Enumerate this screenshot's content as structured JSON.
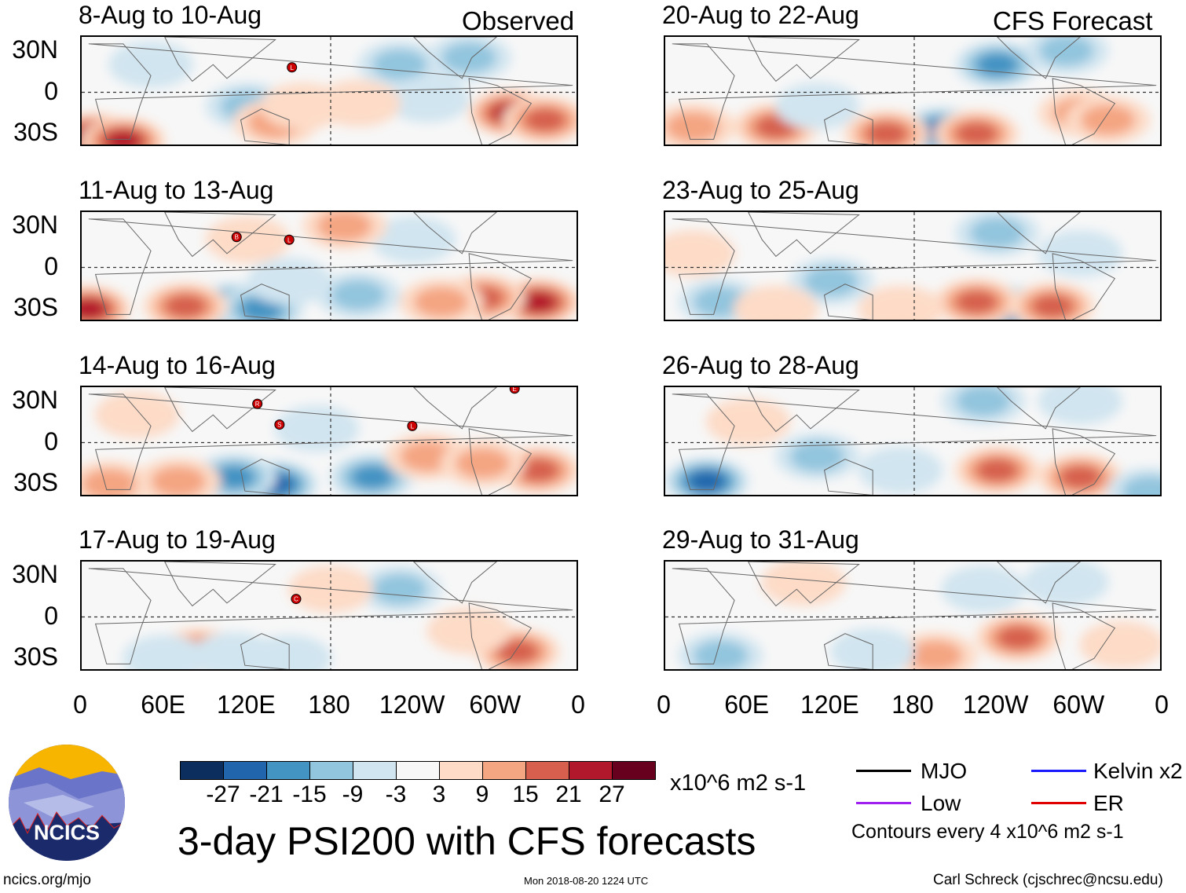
{
  "column_headers": {
    "left": "Observed",
    "right": "CFS Forecast"
  },
  "panels": [
    {
      "title": "8-Aug to 10-Aug",
      "column": "left",
      "row": 0,
      "blobs": [
        [
          10,
          -32,
          30
        ],
        [
          30,
          -35,
          27
        ],
        [
          120,
          -10,
          -12
        ],
        [
          140,
          -22,
          15
        ],
        [
          230,
          20,
          -12
        ],
        [
          250,
          -5,
          -9
        ],
        [
          310,
          -15,
          24
        ],
        [
          335,
          -20,
          21
        ],
        [
          280,
          25,
          -15
        ],
        [
          50,
          20,
          -6
        ],
        [
          160,
          -10,
          9
        ],
        [
          200,
          -8,
          6
        ]
      ],
      "storms": [
        {
          "letter": "L",
          "lon": 152,
          "lat": 18
        }
      ]
    },
    {
      "title": "20-Aug to 22-Aug",
      "column": "right",
      "row": 0,
      "blobs": [
        [
          240,
          20,
          -21
        ],
        [
          200,
          -28,
          -27
        ],
        [
          225,
          -30,
          21
        ],
        [
          160,
          -30,
          21
        ],
        [
          80,
          -25,
          18
        ],
        [
          300,
          -15,
          15
        ],
        [
          320,
          -20,
          12
        ],
        [
          20,
          -25,
          12
        ],
        [
          110,
          -10,
          -9
        ],
        [
          290,
          30,
          -12
        ]
      ],
      "storms": []
    },
    {
      "title": "11-Aug to 13-Aug",
      "column": "left",
      "row": 1,
      "blobs": [
        [
          5,
          -30,
          27
        ],
        [
          110,
          -28,
          -24
        ],
        [
          130,
          -30,
          -21
        ],
        [
          75,
          -28,
          18
        ],
        [
          330,
          -25,
          24
        ],
        [
          290,
          -22,
          21
        ],
        [
          260,
          -25,
          15
        ],
        [
          200,
          -20,
          -12
        ],
        [
          150,
          -10,
          -9
        ],
        [
          240,
          20,
          -9
        ],
        [
          190,
          30,
          12
        ],
        [
          120,
          20,
          6
        ]
      ],
      "storms": [
        {
          "letter": "B",
          "lon": 112,
          "lat": 22
        },
        {
          "letter": "L",
          "lon": 150,
          "lat": 20
        }
      ]
    },
    {
      "title": "23-Aug to 25-Aug",
      "column": "right",
      "row": 1,
      "blobs": [
        [
          250,
          -30,
          -27
        ],
        [
          225,
          -25,
          21
        ],
        [
          280,
          -28,
          18
        ],
        [
          120,
          -10,
          -15
        ],
        [
          40,
          -25,
          -12
        ],
        [
          240,
          25,
          -15
        ],
        [
          170,
          -30,
          9
        ],
        [
          300,
          10,
          -9
        ],
        [
          20,
          10,
          6
        ],
        [
          80,
          -30,
          9
        ]
      ],
      "storms": []
    },
    {
      "title": "14-Aug to 16-Aug",
      "column": "left",
      "row": 2,
      "blobs": [
        [
          140,
          -30,
          -27
        ],
        [
          110,
          -25,
          -18
        ],
        [
          70,
          -28,
          15
        ],
        [
          210,
          -25,
          -18
        ],
        [
          330,
          -20,
          21
        ],
        [
          250,
          -10,
          15
        ],
        [
          290,
          -15,
          12
        ],
        [
          170,
          10,
          -6
        ],
        [
          20,
          -30,
          12
        ],
        [
          40,
          20,
          6
        ]
      ],
      "storms": [
        {
          "letter": "R",
          "lon": 127,
          "lat": 28
        },
        {
          "letter": "S",
          "lon": 143,
          "lat": 13
        },
        {
          "letter": "L",
          "lon": 239,
          "lat": 12
        },
        {
          "letter": "E",
          "lon": 313,
          "lat": 39
        }
      ]
    },
    {
      "title": "26-Aug to 28-Aug",
      "column": "right",
      "row": 2,
      "blobs": [
        [
          30,
          -28,
          -24
        ],
        [
          110,
          -10,
          -12
        ],
        [
          240,
          -20,
          18
        ],
        [
          300,
          -25,
          21
        ],
        [
          230,
          30,
          -12
        ],
        [
          170,
          -20,
          -9
        ],
        [
          350,
          -35,
          -15
        ],
        [
          60,
          15,
          6
        ],
        [
          300,
          30,
          -9
        ]
      ],
      "storms": []
    },
    {
      "title": "17-Aug to 19-Aug",
      "column": "left",
      "row": 3,
      "blobs": [
        [
          85,
          -25,
          21
        ],
        [
          110,
          -28,
          -9
        ],
        [
          150,
          -30,
          -9
        ],
        [
          315,
          -25,
          18
        ],
        [
          230,
          20,
          -12
        ],
        [
          180,
          20,
          6
        ],
        [
          60,
          -30,
          -6
        ],
        [
          280,
          -10,
          6
        ]
      ],
      "storms": [
        {
          "letter": "C",
          "lon": 155,
          "lat": 13
        }
      ]
    },
    {
      "title": "29-Aug to 31-Aug",
      "column": "right",
      "row": 3,
      "blobs": [
        [
          255,
          -15,
          21
        ],
        [
          195,
          -28,
          15
        ],
        [
          40,
          -28,
          -15
        ],
        [
          150,
          -25,
          -9
        ],
        [
          230,
          20,
          -9
        ],
        [
          330,
          -20,
          9
        ],
        [
          290,
          25,
          -6
        ],
        [
          100,
          25,
          6
        ]
      ],
      "storms": []
    }
  ],
  "axes": {
    "y_ticks": [
      {
        "label": "30N",
        "lat": 30
      },
      {
        "label": "0",
        "lat": 0
      },
      {
        "label": "30S",
        "lat": -30
      }
    ],
    "x_ticks": [
      {
        "label": "0",
        "lon": 0
      },
      {
        "label": "60E",
        "lon": 60
      },
      {
        "label": "120E",
        "lon": 120
      },
      {
        "label": "180",
        "lon": 180
      },
      {
        "label": "120W",
        "lon": 240
      },
      {
        "label": "60W",
        "lon": 300
      },
      {
        "label": "0",
        "lon": 360
      }
    ],
    "lat_range": [
      -40,
      40
    ],
    "lon_range": [
      0,
      360
    ]
  },
  "colorbar": {
    "colors": [
      "#0b2e5e",
      "#2166ac",
      "#4393c3",
      "#92c5de",
      "#d1e5f0",
      "#f7f7f7",
      "#fddbc7",
      "#f4a582",
      "#d6604d",
      "#b2182b",
      "#67001f"
    ],
    "labels": [
      "-27",
      "-21",
      "-15",
      "-9",
      "-3",
      "3",
      "9",
      "15",
      "21",
      "27"
    ],
    "units": "x10^6 m2 s-1"
  },
  "title": "3-day PSI200 with CFS forecasts",
  "legend": {
    "items": [
      {
        "label": "MJO",
        "color": "#000000"
      },
      {
        "label": "Kelvin x2",
        "color": "#1a1aff"
      },
      {
        "label": "Low",
        "color": "#a020f0"
      },
      {
        "label": "ER",
        "color": "#e00000"
      }
    ],
    "contours_note": "Contours every 4 x10^6 m2 s-1"
  },
  "logo": {
    "text": "NCICS"
  },
  "footer": {
    "url": "ncics.org/mjo",
    "timestamp": "Mon 2018-08-20 1224 UTC",
    "credit": "Carl Schreck (cjschrec@ncsu.edu)"
  }
}
